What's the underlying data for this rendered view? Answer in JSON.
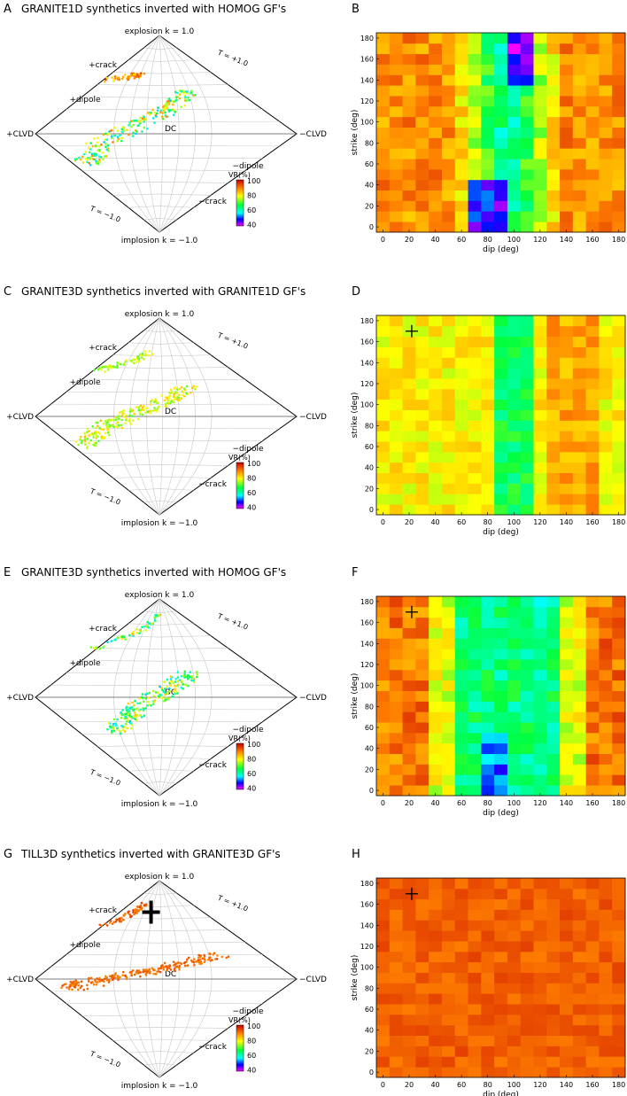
{
  "figure_kind": "moment tensor inversion variance reduction figure",
  "lune_labels": {
    "explosion": "explosion k = 1.0",
    "implosion": "implosion k = −1.0",
    "plus_clvd": "+CLVD",
    "minus_clvd": "−CLVD",
    "plus_crack": "+crack",
    "minus_crack": "−crack",
    "plus_dipole": "+dipole",
    "minus_dipole": "−dipole",
    "dc": "DC",
    "t_plus": "T = +1.0",
    "t_minus": "T = −1.0"
  },
  "colorbar": {
    "title": "VR(%)",
    "ticks": [
      "100",
      "80",
      "60",
      "40"
    ],
    "range": [
      40,
      100
    ]
  },
  "grid_axes": {
    "xlabel": "dip (deg)",
    "ylabel": "strike (deg)",
    "xticks": [
      "0",
      "20",
      "40",
      "60",
      "80",
      "100",
      "120",
      "140",
      "160",
      "180"
    ],
    "yticks": [
      "0",
      "20",
      "40",
      "60",
      "80",
      "100",
      "120",
      "140",
      "160",
      "180"
    ]
  },
  "chart_data": [
    {
      "type": "scatter",
      "panel": "A",
      "title": "GRANITE1D synthetics inverted with HOMOG GF's",
      "description": "source-type lune: VR of best solutions (k vs T)",
      "clusters": [
        {
          "name": "near +crack",
          "k": [
            0.55,
            0.6
          ],
          "T": [
            0.35,
            0.9
          ],
          "vr_range": [
            80,
            95
          ]
        },
        {
          "name": "band through DC",
          "k": [
            -0.3,
            0.45
          ],
          "T": [
            -0.4,
            0.8
          ],
          "vr_range": [
            55,
            90
          ]
        }
      ]
    },
    {
      "type": "heatmap",
      "panel": "B",
      "xlabel": "dip (deg)",
      "ylabel": "strike (deg)",
      "xlim": [
        0,
        180
      ],
      "ylim": [
        0,
        180
      ],
      "vr_range": [
        40,
        100
      ],
      "pattern": "high VR (~90) at dip 0-60 and 120-180; low VR (40-65) in central dip band 60-120"
    },
    {
      "type": "scatter",
      "panel": "C",
      "title": "GRANITE3D synthetics inverted with GRANITE1D GF's",
      "clusters": [
        {
          "name": "near +crack",
          "k": [
            0.45,
            0.65
          ],
          "T": [
            0.2,
            0.9
          ],
          "vr_range": [
            70,
            80
          ]
        },
        {
          "name": "around DC",
          "k": [
            -0.3,
            0.3
          ],
          "T": [
            -0.3,
            0.8
          ],
          "vr_range": [
            70,
            85
          ]
        }
      ]
    },
    {
      "type": "heatmap",
      "panel": "D",
      "xlabel": "dip (deg)",
      "ylabel": "strike (deg)",
      "xlim": [
        0,
        180
      ],
      "ylim": [
        0,
        180
      ],
      "vr_range": [
        40,
        100
      ],
      "true_solution": {
        "dip": 22,
        "strike": 170
      },
      "pattern": "mostly 75-88 VR; lower (~65) band at dip 90-110"
    },
    {
      "type": "scatter",
      "panel": "E",
      "title": "GRANITE3D synthetics inverted with HOMOG GF's",
      "clusters": [
        {
          "name": "near +crack",
          "k": [
            0.5,
            0.85
          ],
          "T": [
            0.0,
            1.0
          ],
          "vr_range": [
            55,
            85
          ]
        },
        {
          "name": "band through DC",
          "k": [
            -0.35,
            0.25
          ],
          "T": [
            -0.3,
            0.5
          ],
          "vr_range": [
            55,
            85
          ]
        }
      ]
    },
    {
      "type": "heatmap",
      "panel": "F",
      "xlabel": "dip (deg)",
      "ylabel": "strike (deg)",
      "xlim": [
        0,
        180
      ],
      "ylim": [
        0,
        180
      ],
      "vr_range": [
        40,
        100
      ],
      "true_solution": {
        "dip": 22,
        "strike": 170
      },
      "pattern": "high VR (~90) at dip 0-40 and 150-180; low VR (~55-65) band at dip 50-130"
    },
    {
      "type": "scatter",
      "panel": "G",
      "title": "TILL3D synthetics inverted with GRANITE3D GF's",
      "true_solution_marker": "near +crack",
      "clusters": [
        {
          "name": "near +crack",
          "k": [
            0.55,
            0.75
          ],
          "T": [
            0.5,
            0.9
          ],
          "vr_range": [
            88,
            95
          ]
        },
        {
          "name": "band through DC",
          "k": [
            -0.1,
            0.25
          ],
          "T": [
            -0.6,
            0.8
          ],
          "vr_range": [
            88,
            94
          ]
        }
      ]
    },
    {
      "type": "heatmap",
      "panel": "H",
      "xlabel": "dip (deg)",
      "ylabel": "strike (deg)",
      "xlim": [
        0,
        180
      ],
      "ylim": [
        0,
        180
      ],
      "vr_range": [
        40,
        100
      ],
      "true_solution": {
        "dip": 22,
        "strike": 170
      },
      "pattern": "uniformly high VR (~90-95) everywhere"
    }
  ],
  "panel_letters": [
    "A",
    "B",
    "C",
    "D",
    "E",
    "F",
    "G",
    "H"
  ]
}
